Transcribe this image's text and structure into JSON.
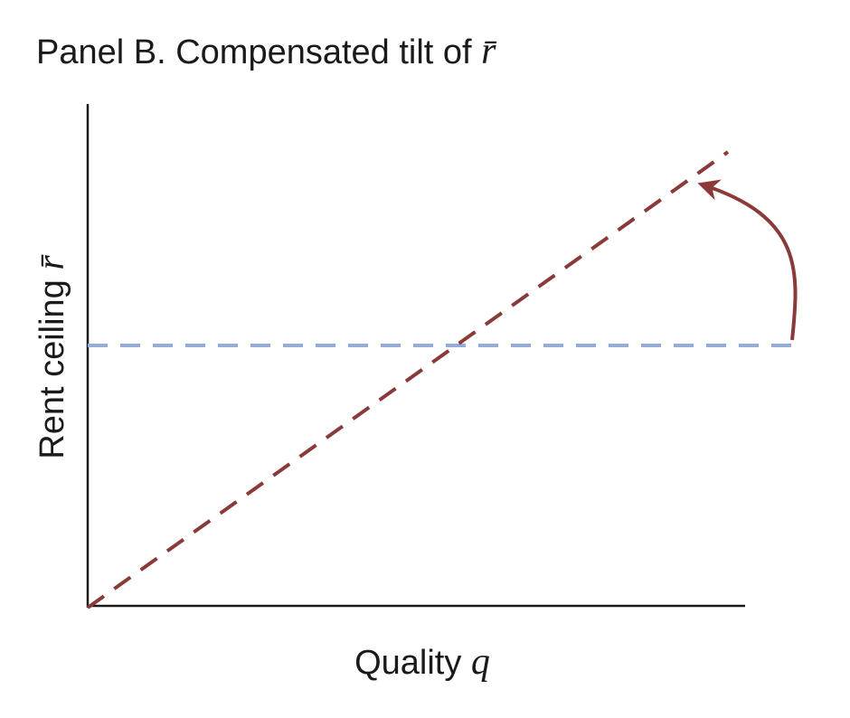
{
  "title": {
    "text": "Panel B. Compensated tilt of",
    "symbol": "r̄"
  },
  "axes": {
    "y_label": {
      "text": "Rent ceiling",
      "symbol": "r̄"
    },
    "x_label": {
      "text": "Quality",
      "symbol": "q"
    }
  }
}
